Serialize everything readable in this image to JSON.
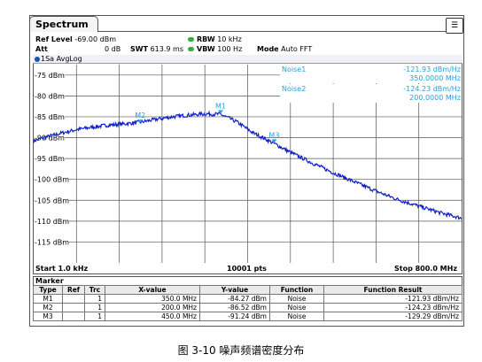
{
  "window": {
    "tab_title": "Spectrum",
    "menu_icon": "list-icon"
  },
  "header": {
    "ref_level_label": "Ref Level",
    "ref_level_value": "-69.00 dBm",
    "att_label": "Att",
    "att_value": "0 dB",
    "swt_label": "SWT",
    "swt_value": "613.9 ms",
    "rbw_label": "RBW",
    "rbw_value": "10 kHz",
    "vbw_label": "VBW",
    "vbw_value": "100 Hz",
    "mode_label": "Mode",
    "mode_value": "Auto FFT"
  },
  "trace_label": "1Sa AvgLog",
  "noise_readouts": [
    {
      "name": "Noise1",
      "value": "-121.93 dBm/Hz",
      "freq": "350.0000 MHz"
    },
    {
      "name": "Noise2",
      "value": "-124.23 dBm/Hz",
      "freq": "200.0000 MHz"
    }
  ],
  "chart_data": {
    "type": "line",
    "y_tick_labels": [
      "-75 dBm",
      "-80 dBm",
      "-85 dBm",
      "-90 dBm",
      "-95 dBm",
      "-100 dBm",
      "-105 dBm",
      "-110 dBm",
      "-115 dBm"
    ],
    "ylim": [
      -120,
      -70
    ],
    "xlim": [
      1.0,
      800.0
    ],
    "x_unit": "MHz",
    "series": [
      {
        "color": "#1020c8",
        "x": [
          1,
          20,
          50,
          80,
          110,
          140,
          170,
          200,
          230,
          260,
          290,
          320,
          350,
          380,
          410,
          450,
          480,
          520,
          560,
          600,
          640,
          680,
          720,
          760,
          800
        ],
        "y": [
          -90.8,
          -90.0,
          -89.0,
          -88.1,
          -87.5,
          -87.0,
          -86.7,
          -86.3,
          -85.6,
          -85.0,
          -84.6,
          -84.3,
          -84.4,
          -86.2,
          -88.8,
          -91.4,
          -93.5,
          -96.0,
          -98.4,
          -100.6,
          -102.8,
          -104.8,
          -106.4,
          -108.0,
          -109.3
        ]
      }
    ],
    "markers": [
      {
        "name": "M1",
        "x": 350.0,
        "y": -84.27
      },
      {
        "name": "M2",
        "x": 200.0,
        "y": -86.52
      },
      {
        "name": "M3",
        "x": 450.0,
        "y": -91.24
      }
    ],
    "grid": true
  },
  "footer": {
    "start": "Start 1.0 kHz",
    "points": "10001 pts",
    "stop": "Stop 800.0 MHz"
  },
  "marker_table": {
    "title": "Marker",
    "headers": [
      "Type",
      "Ref",
      "Trc",
      "X-value",
      "Y-value",
      "Function",
      "Function Result"
    ],
    "rows": [
      [
        "M1",
        "",
        "1",
        "350.0 MHz",
        "-84.27 dBm",
        "Noise",
        "-121.93 dBm/Hz"
      ],
      [
        "M2",
        "",
        "1",
        "200.0 MHz",
        "-86.52 dBm",
        "Noise",
        "-124.23 dBm/Hz"
      ],
      [
        "M3",
        "",
        "1",
        "450.0 MHz",
        "-91.24 dBm",
        "Noise",
        "-129.29 dBm/Hz"
      ]
    ]
  },
  "caption": "图 3-10 噪声频谱密度分布"
}
